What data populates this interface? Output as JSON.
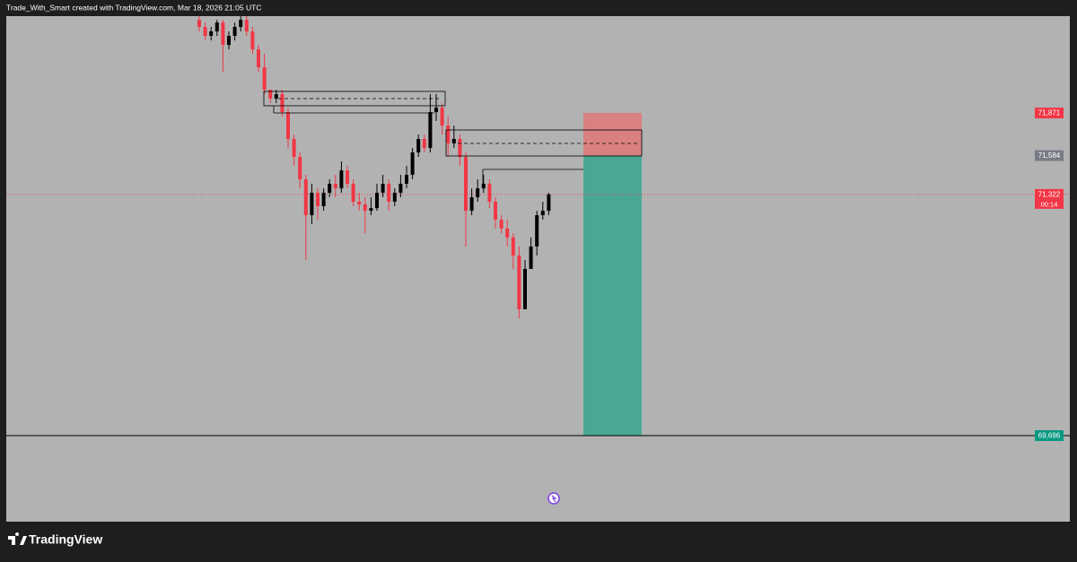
{
  "header": {
    "text": "Trade_With_Smart created with TradingView.com, Mar 18, 2026 21:05 UTC"
  },
  "footer": {
    "brand": "TradingView"
  },
  "chart_data": {
    "type": "candlestick",
    "open": [
      72499,
      72451,
      72391,
      72421,
      72481,
      72330,
      72391,
      72451,
      72499,
      72421,
      72300,
      72179,
      72028,
      71968,
      71998,
      71877,
      71696,
      71575,
      71424,
      71182,
      71333,
      71243,
      71333,
      71394,
      71363,
      71484,
      71394,
      71273,
      71255,
      71212,
      71230,
      71333,
      71394,
      71273,
      71333,
      71394,
      71454,
      71605,
      71696,
      71635,
      71877,
      71907,
      71786,
      71666,
      71696,
      71575,
      71212,
      71303,
      71363,
      71394,
      71273,
      71152,
      71092,
      71031,
      70910,
      70548,
      70820,
      70971,
      71182,
      71212
    ],
    "high": [
      72524,
      72481,
      72451,
      72499,
      72499,
      72421,
      72481,
      72524,
      72524,
      72451,
      72330,
      72270,
      72028,
      72028,
      72028,
      71907,
      71726,
      71605,
      71454,
      71394,
      71363,
      71363,
      71424,
      71454,
      71545,
      71514,
      71424,
      71333,
      71303,
      71303,
      71394,
      71454,
      71424,
      71363,
      71454,
      71514,
      71635,
      71726,
      71726,
      71998,
      71998,
      71937,
      71847,
      71786,
      71726,
      71605,
      71363,
      71424,
      71454,
      71424,
      71303,
      71182,
      71152,
      71061,
      70971,
      70880,
      71031,
      71212,
      71273,
      71333
    ],
    "low": [
      72421,
      72360,
      72360,
      72391,
      72149,
      72300,
      72360,
      72421,
      72391,
      72270,
      72149,
      71998,
      71937,
      71937,
      71847,
      71635,
      71514,
      71363,
      70880,
      71122,
      71152,
      71212,
      71303,
      71303,
      71333,
      71363,
      71243,
      71212,
      71061,
      71182,
      71212,
      71303,
      71212,
      71243,
      71303,
      71363,
      71424,
      71575,
      71605,
      71605,
      71817,
      71726,
      71575,
      71635,
      71514,
      70971,
      71182,
      71273,
      71333,
      71230,
      71092,
      71061,
      70971,
      70820,
      70487,
      70548,
      70820,
      70910,
      71152,
      71182
    ],
    "close": [
      72451,
      72391,
      72421,
      72481,
      72330,
      72391,
      72451,
      72499,
      72421,
      72300,
      72179,
      72028,
      71968,
      71998,
      71877,
      71696,
      71575,
      71424,
      71182,
      71333,
      71243,
      71333,
      71394,
      71363,
      71484,
      71394,
      71273,
      71255,
      71212,
      71230,
      71333,
      71394,
      71273,
      71333,
      71394,
      71454,
      71605,
      71696,
      71635,
      71877,
      71907,
      71786,
      71666,
      71696,
      71575,
      71212,
      71303,
      71363,
      71394,
      71273,
      71152,
      71092,
      71031,
      70910,
      70548,
      70820,
      70971,
      71182,
      71212,
      71322
    ],
    "up_color": "#000000",
    "down_color": "#f23645",
    "ylim": [
      69116,
      72524
    ],
    "yticks": [
      {
        "value": 71871,
        "label": "71,871"
      },
      {
        "value": 71584,
        "label": "71,584"
      },
      {
        "value": 71322,
        "label": "71,322"
      },
      {
        "value": 69696,
        "label": "69,696"
      }
    ],
    "ytick_colors": [
      "#f23645",
      "#787b86",
      "#f23645",
      "#089981"
    ],
    "countdown": "00:14"
  }
}
